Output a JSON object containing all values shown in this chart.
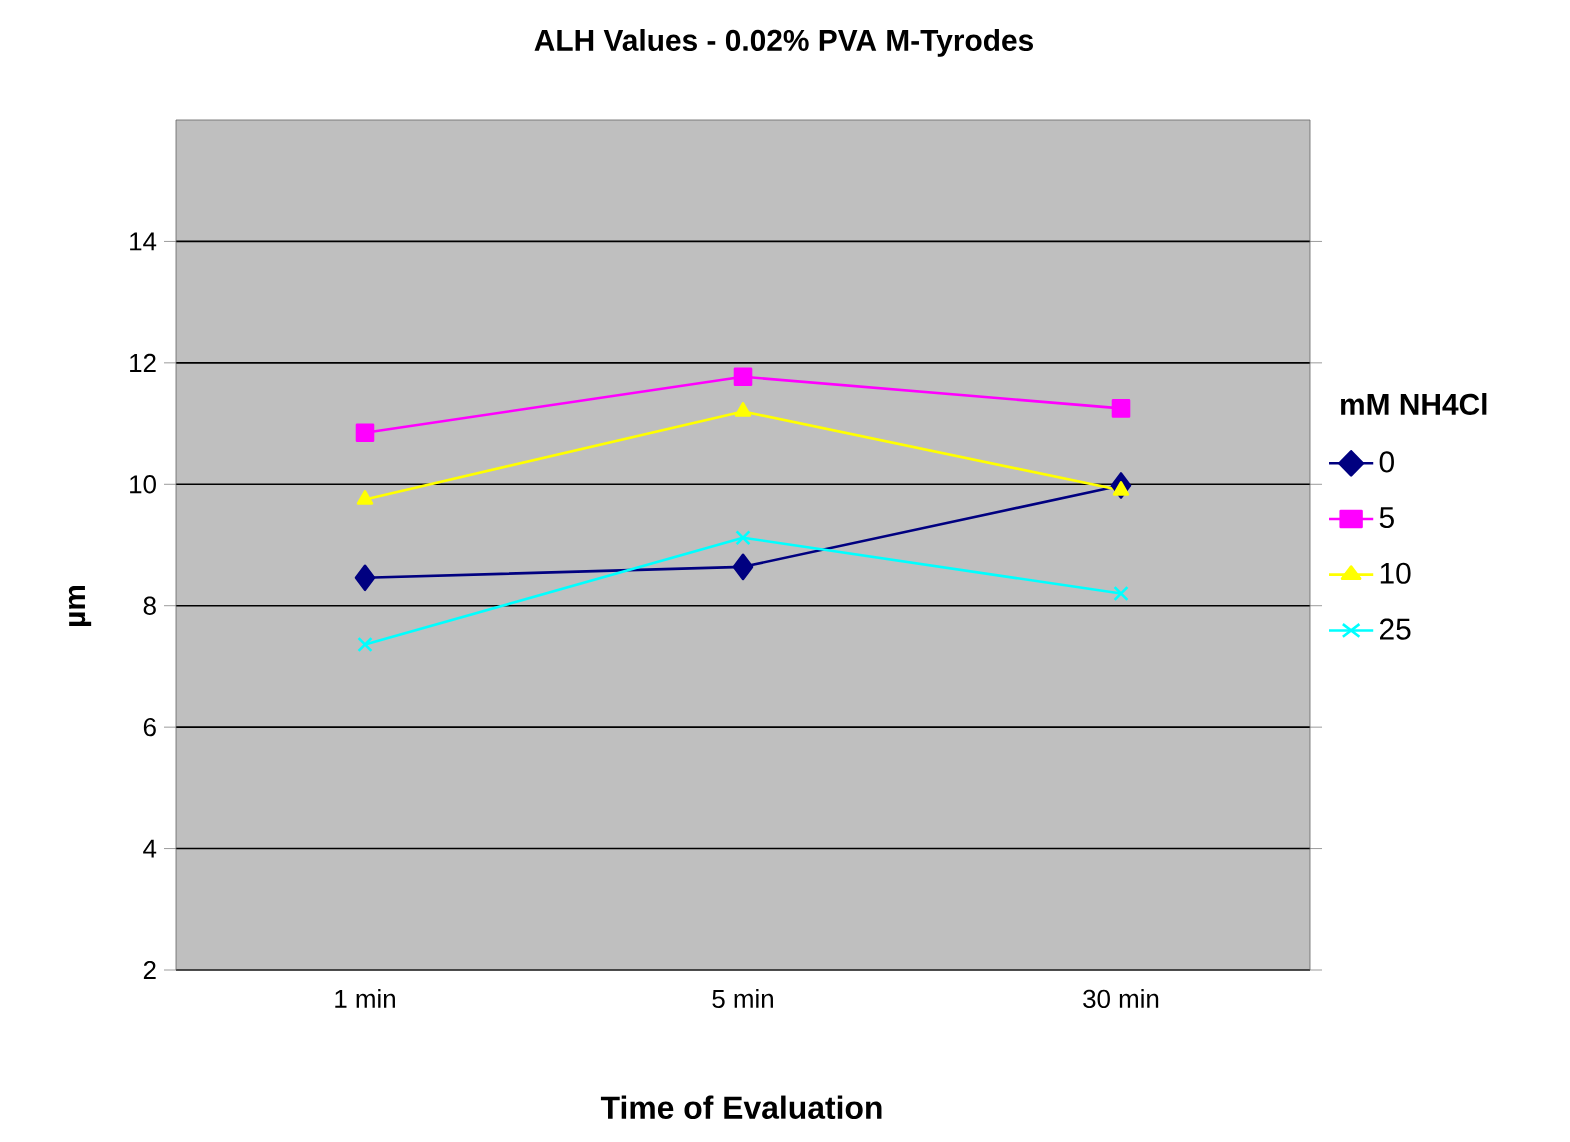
{
  "chart_data": {
    "type": "line",
    "title": "ALH Values - 0.02% PVA M-Tyrodes",
    "xlabel": "Time of Evaluation",
    "ylabel": "µm",
    "legend_title": "mM NH4Cl",
    "categories": [
      "1 min",
      "5 min",
      "30 min"
    ],
    "series": [
      {
        "name": "0",
        "color": "#000080",
        "marker": "diamond",
        "values": [
          8.46,
          8.64,
          9.98
        ]
      },
      {
        "name": "5",
        "color": "#ff00ff",
        "marker": "square",
        "values": [
          10.85,
          11.77,
          11.25
        ]
      },
      {
        "name": "10",
        "color": "#ffff00",
        "marker": "triangle",
        "values": [
          9.75,
          11.2,
          9.9
        ]
      },
      {
        "name": "25",
        "color": "#00ffff",
        "marker": "cross",
        "values": [
          7.36,
          9.12,
          8.2
        ]
      }
    ],
    "ylim": [
      2,
      16
    ],
    "yticks": [
      2,
      4,
      6,
      8,
      10,
      12,
      14
    ],
    "grid": "y",
    "legend": "right"
  }
}
